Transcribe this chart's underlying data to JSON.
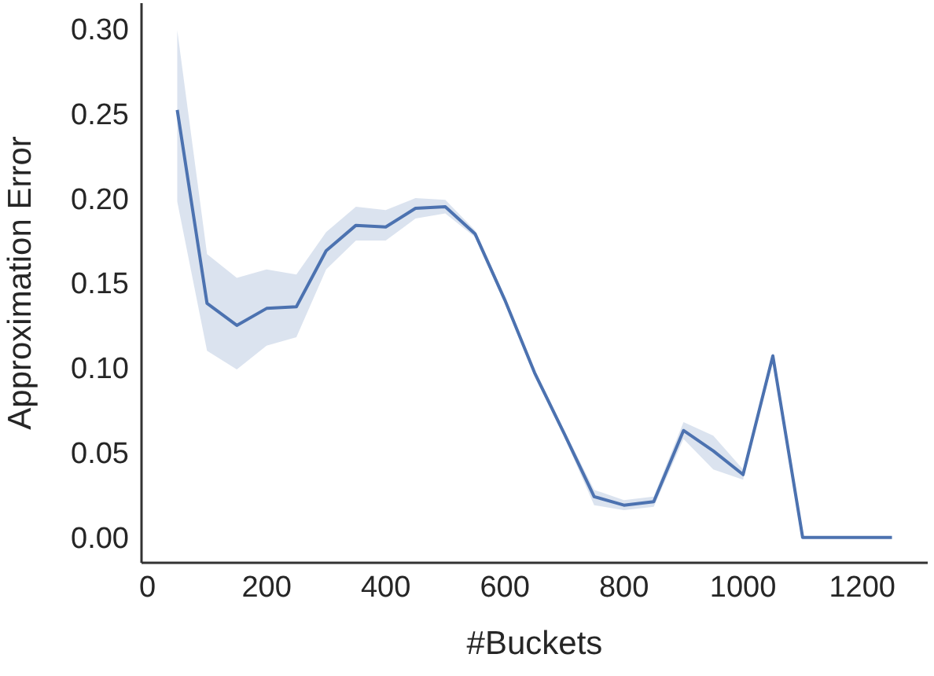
{
  "chart_data": {
    "type": "line",
    "xlabel": "#Buckets",
    "ylabel": "Approximation Error",
    "x": [
      50,
      100,
      150,
      200,
      250,
      300,
      350,
      400,
      450,
      500,
      550,
      600,
      650,
      700,
      750,
      800,
      850,
      900,
      950,
      1000,
      1050,
      1100,
      1150,
      1200,
      1250
    ],
    "series": [
      {
        "color": "#4c72b0",
        "values": [
          0.252,
          0.138,
          0.125,
          0.135,
          0.136,
          0.169,
          0.184,
          0.183,
          0.194,
          0.195,
          0.179,
          0.14,
          0.097,
          0.061,
          0.024,
          0.019,
          0.021,
          0.063,
          0.051,
          0.037,
          0.107,
          0,
          0,
          0,
          0
        ],
        "lower": [
          0.198,
          0.11,
          0.099,
          0.113,
          0.118,
          0.158,
          0.175,
          0.175,
          0.188,
          0.191,
          0.177,
          0.138,
          0.095,
          0.059,
          0.019,
          0.016,
          0.018,
          0.058,
          0.04,
          0.034,
          0.105,
          0,
          0,
          0,
          0
        ],
        "upper": [
          0.299,
          0.167,
          0.153,
          0.158,
          0.155,
          0.18,
          0.195,
          0.193,
          0.2,
          0.199,
          0.181,
          0.142,
          0.099,
          0.063,
          0.028,
          0.022,
          0.024,
          0.068,
          0.06,
          0.04,
          0.109,
          0,
          0,
          0,
          0
        ]
      }
    ],
    "xlim": [
      -10,
      1310
    ],
    "xticks": [
      0,
      200,
      400,
      600,
      800,
      1000,
      1200
    ],
    "ylim": [
      -0.015,
      0.315
    ],
    "yticks": [
      {
        "value": 0,
        "label": "0.00"
      },
      {
        "value": 0.05,
        "label": "0.05"
      },
      {
        "value": 0.1,
        "label": "0.10"
      },
      {
        "value": 0.15,
        "label": "0.15"
      },
      {
        "value": 0.2,
        "label": "0.20"
      },
      {
        "value": 0.25,
        "label": "0.25"
      },
      {
        "value": 0.3,
        "label": "0.30"
      }
    ]
  }
}
